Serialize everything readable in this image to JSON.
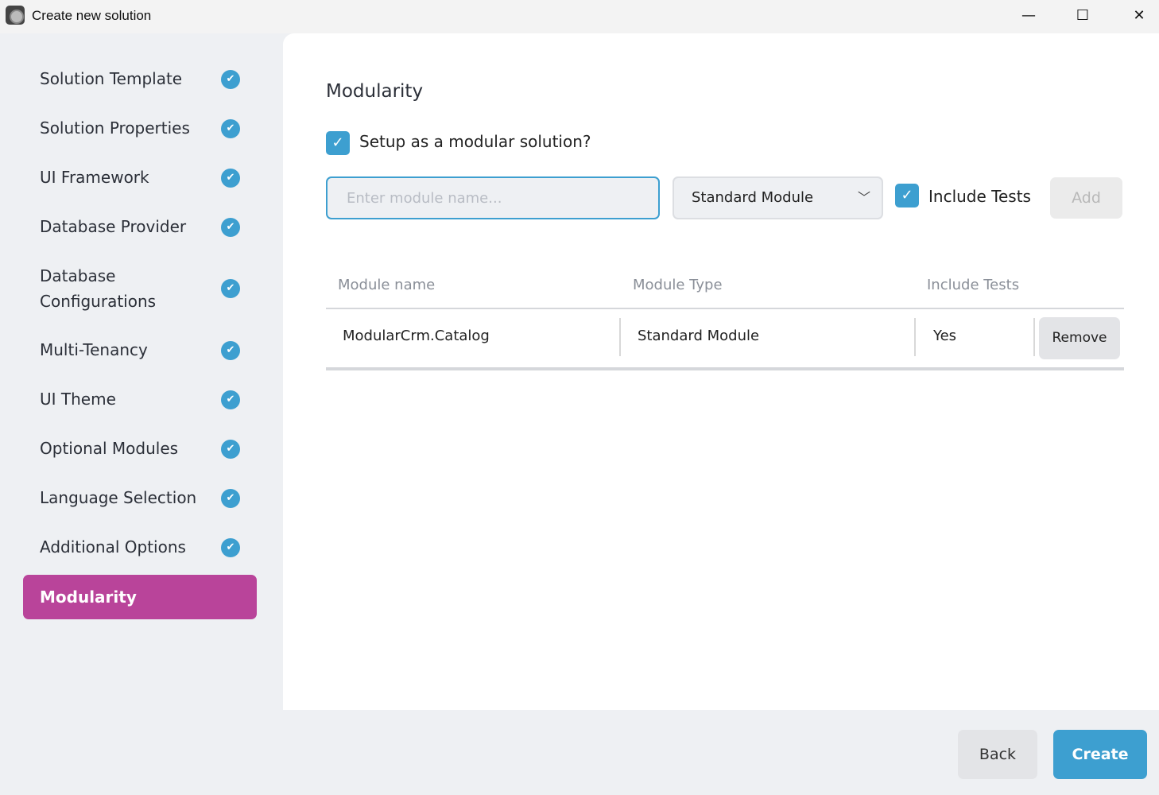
{
  "window": {
    "title": "Create new solution",
    "minimize": "—",
    "maximize": "☐",
    "close": "✕"
  },
  "sidebar": {
    "items": [
      {
        "label": "Solution Template",
        "done": true
      },
      {
        "label": "Solution Properties",
        "done": true
      },
      {
        "label": "UI Framework",
        "done": true
      },
      {
        "label": "Database Provider",
        "done": true
      },
      {
        "label": "Database Configurations",
        "done": true
      },
      {
        "label": "Multi-Tenancy",
        "done": true
      },
      {
        "label": "UI Theme",
        "done": true
      },
      {
        "label": "Optional Modules",
        "done": true
      },
      {
        "label": "Language Selection",
        "done": true
      },
      {
        "label": "Additional Options",
        "done": true
      },
      {
        "label": "Modularity",
        "active": true
      }
    ],
    "check_glyph": "✔"
  },
  "main": {
    "heading": "Modularity",
    "modular_checkbox": {
      "label": "Setup as a modular solution?",
      "checked": true,
      "glyph": "✓"
    },
    "module_name_input": {
      "value": "",
      "placeholder": "Enter module name..."
    },
    "module_type_select": {
      "value": "Standard Module",
      "chevron": "﹀"
    },
    "include_tests_checkbox": {
      "label": "Include Tests",
      "checked": true,
      "glyph": "✓"
    },
    "add_label": "Add",
    "table": {
      "headers": [
        "Module name",
        "Module Type",
        "Include Tests"
      ],
      "rows": [
        {
          "name": "ModularCrm.Catalog",
          "type": "Standard Module",
          "tests": "Yes",
          "remove": "Remove"
        }
      ]
    }
  },
  "footer": {
    "back": "Back",
    "create": "Create"
  },
  "colors": {
    "accent": "#3d9fd0",
    "active": "#b9449a"
  }
}
